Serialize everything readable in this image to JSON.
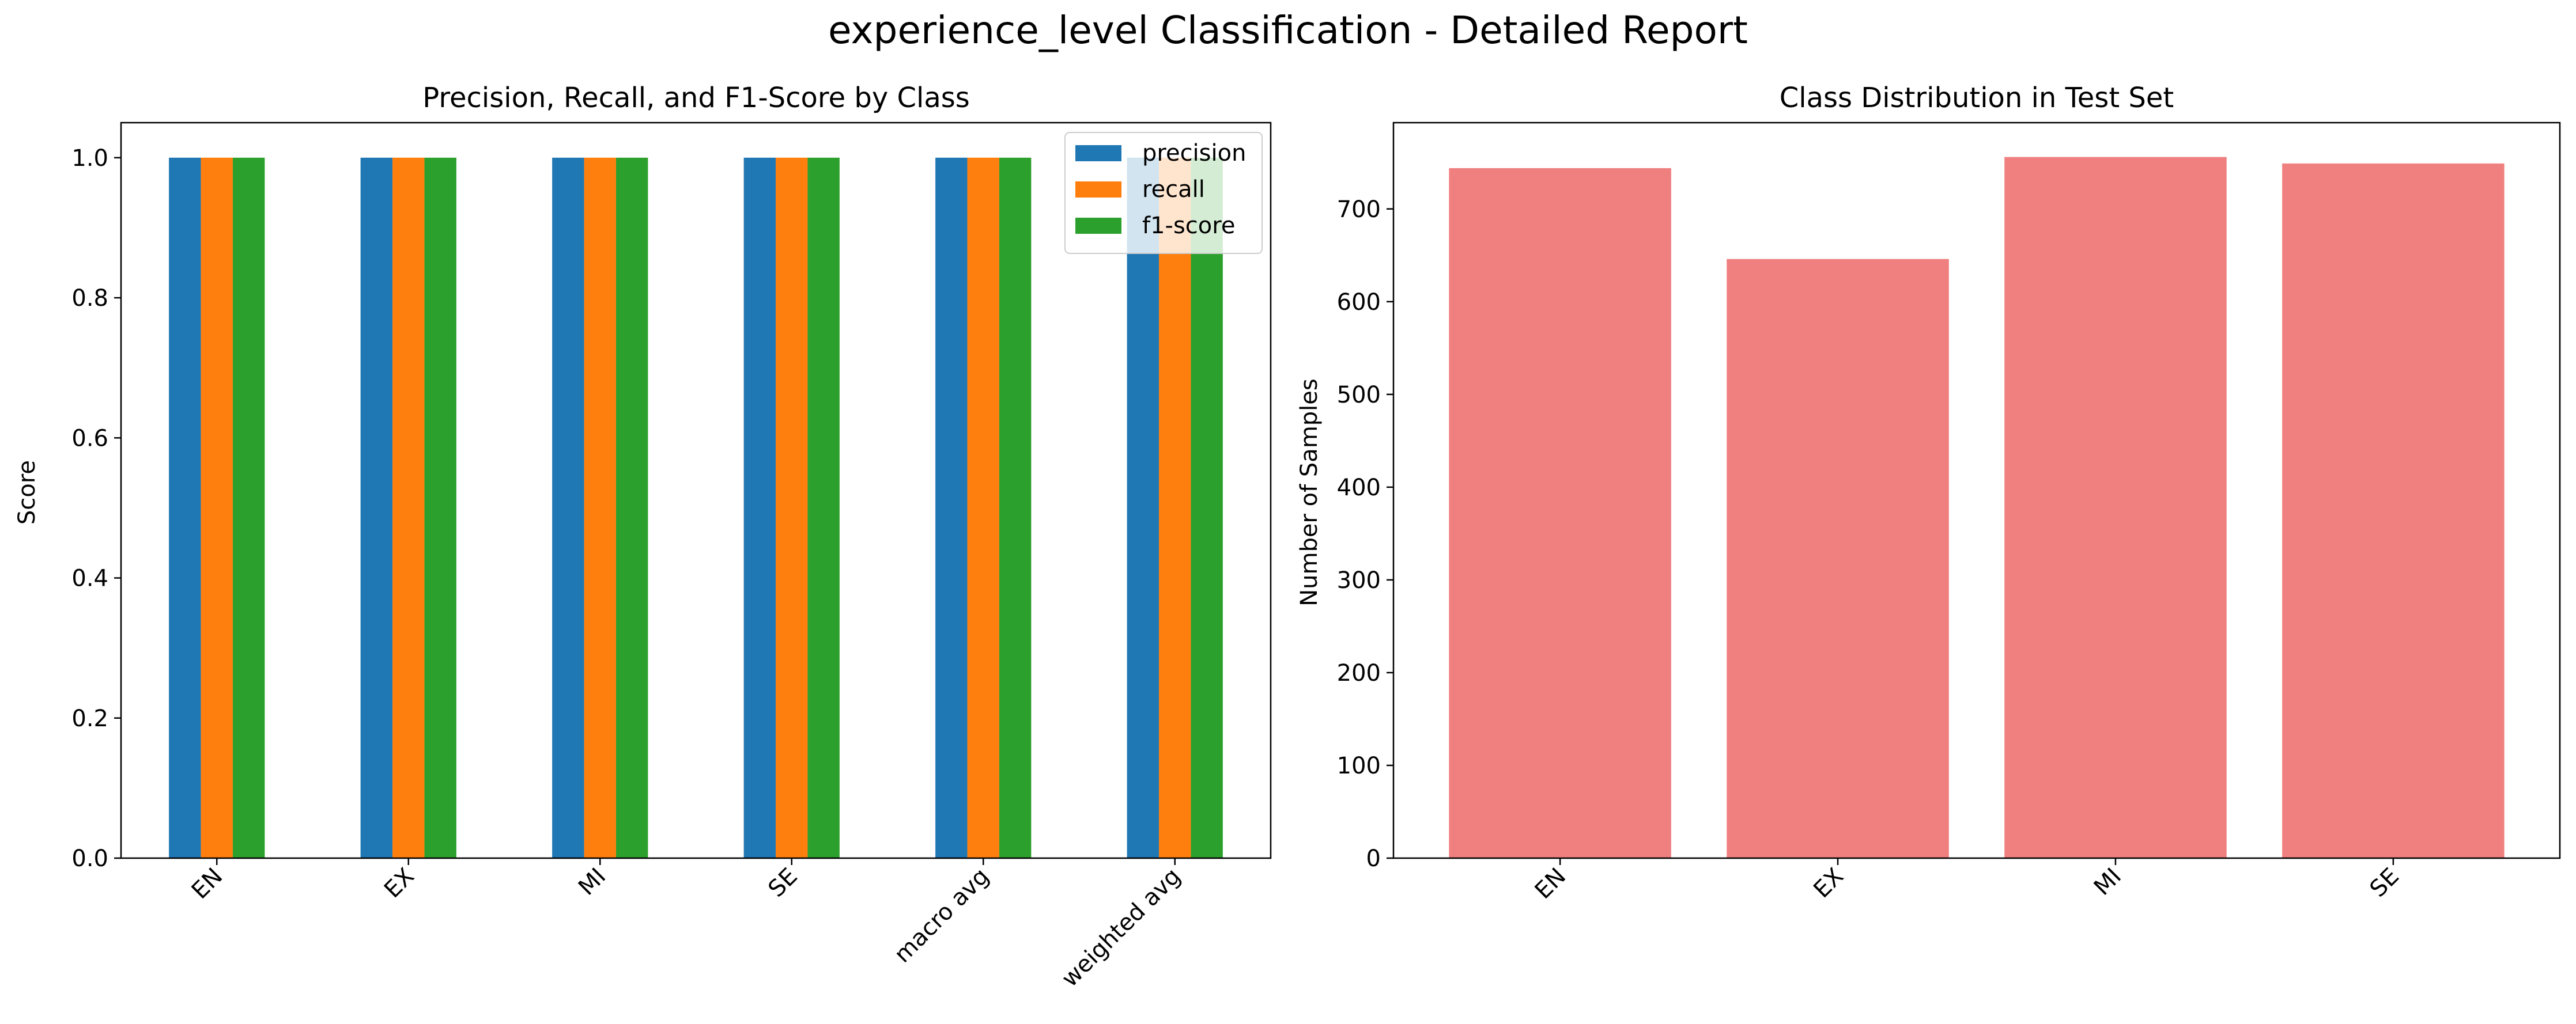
{
  "suptitle": "experience_level Classification - Detailed Report",
  "chart_data": [
    {
      "type": "bar",
      "title": "Precision, Recall, and F1-Score by Class",
      "xlabel": "",
      "ylabel": "Score",
      "categories": [
        "EN",
        "EX",
        "MI",
        "SE",
        "macro avg",
        "weighted avg"
      ],
      "series": [
        {
          "name": "precision",
          "color": "#1f77b4",
          "values": [
            1.0,
            1.0,
            1.0,
            1.0,
            1.0,
            1.0
          ]
        },
        {
          "name": "recall",
          "color": "#ff7f0e",
          "values": [
            1.0,
            1.0,
            1.0,
            1.0,
            1.0,
            1.0
          ]
        },
        {
          "name": "f1-score",
          "color": "#2ca02c",
          "values": [
            1.0,
            1.0,
            1.0,
            1.0,
            1.0,
            1.0
          ]
        }
      ],
      "ylim": [
        0,
        1.05
      ],
      "yticks": [
        "0.0",
        "0.2",
        "0.4",
        "0.6",
        "0.8",
        "1.0"
      ],
      "grid": false,
      "legend": "top-right"
    },
    {
      "type": "bar",
      "title": "Class Distribution in Test Set",
      "xlabel": "",
      "ylabel": "Number of Samples",
      "categories": [
        "EN",
        "EX",
        "MI",
        "SE"
      ],
      "values": [
        744,
        646,
        756,
        749
      ],
      "color": "#f08080",
      "ylim": [
        0,
        793
      ],
      "yticks": [
        "0",
        "100",
        "200",
        "300",
        "400",
        "500",
        "600",
        "700"
      ],
      "grid": false
    }
  ]
}
